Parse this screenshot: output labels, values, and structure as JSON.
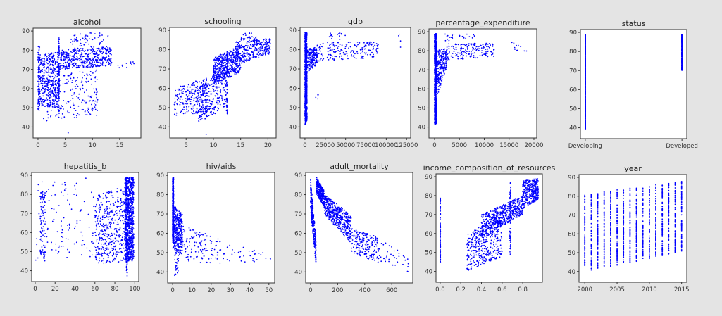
{
  "point_color": "#0000ff",
  "background": "#e4e4e4",
  "chart_data": [
    {
      "type": "scatter",
      "title": "alcohol",
      "xlim": [
        -0.9,
        18.9
      ],
      "ylim": [
        34.3,
        91.5
      ],
      "xticks": [
        0,
        5,
        10,
        15
      ],
      "yticks": [
        40,
        50,
        60,
        70,
        80,
        90
      ],
      "clusters": [
        {
          "x": [
            0,
            4
          ],
          "y0": [
            51,
            78
          ],
          "y1": [
            50,
            79
          ],
          "n": 420
        },
        {
          "x": [
            0,
            0.3
          ],
          "y0": [
            48,
            83
          ],
          "y1": [
            48,
            83
          ],
          "n": 60
        },
        {
          "x": [
            3.8,
            3.9
          ],
          "y0": [
            45,
            88
          ],
          "y1": [
            45,
            88
          ],
          "n": 90
        },
        {
          "x": [
            4,
            13.5
          ],
          "y0": [
            70,
            80
          ],
          "y1": [
            72,
            82
          ],
          "n": 420
        },
        {
          "x": [
            6,
            13
          ],
          "y0": [
            80,
            89
          ],
          "y1": [
            80,
            89
          ],
          "n": 70
        },
        {
          "x": [
            1,
            11
          ],
          "y0": [
            43,
            66
          ],
          "y1": [
            46,
            70
          ],
          "n": 200
        },
        {
          "x": [
            13,
            18
          ],
          "y0": [
            70,
            76
          ],
          "y1": [
            71,
            74
          ],
          "n": 15
        },
        {
          "x": [
            5.5,
            5.6
          ],
          "y0": [
            36,
            37
          ],
          "y1": [
            36,
            37
          ],
          "n": 1
        }
      ]
    },
    {
      "type": "scatter",
      "title": "schooling",
      "xlim": [
        2.0,
        21.5
      ],
      "ylim": [
        34.3,
        91.5
      ],
      "xticks": [
        5,
        10,
        15,
        20
      ],
      "yticks": [
        40,
        50,
        60,
        70,
        80,
        90
      ],
      "clusters": [
        {
          "x": [
            2.8,
            9
          ],
          "y0": [
            45,
            60
          ],
          "y1": [
            48,
            66
          ],
          "n": 220
        },
        {
          "x": [
            7,
            12.5
          ],
          "y0": [
            42,
            60
          ],
          "y1": [
            50,
            72
          ],
          "n": 280
        },
        {
          "x": [
            10,
            15
          ],
          "y0": [
            62,
            76
          ],
          "y1": [
            68,
            82
          ],
          "n": 500
        },
        {
          "x": [
            14,
            20.5
          ],
          "y0": [
            72,
            84
          ],
          "y1": [
            78,
            86
          ],
          "n": 300
        },
        {
          "x": [
            12.4,
            12.6
          ],
          "y0": [
            46,
            80
          ],
          "y1": [
            46,
            80
          ],
          "n": 70
        },
        {
          "x": [
            15,
            18
          ],
          "y0": [
            85,
            89
          ],
          "y1": [
            85,
            89
          ],
          "n": 25
        },
        {
          "x": [
            8.6,
            8.7
          ],
          "y0": [
            36,
            37
          ],
          "y1": [
            36,
            37
          ],
          "n": 1
        }
      ]
    },
    {
      "type": "scatter",
      "title": "gdp",
      "xlim": [
        -6000,
        130000
      ],
      "ylim": [
        34.3,
        91.5
      ],
      "xticks": [
        0,
        25000,
        50000,
        75000,
        100000,
        125000
      ],
      "xticklabels": [
        "0",
        "25000",
        "50000",
        "75000",
        "100000",
        "125000"
      ],
      "yticks": [
        40,
        50,
        60,
        70,
        80,
        90
      ],
      "clusters": [
        {
          "x": [
            0,
            2500
          ],
          "y0": [
            41,
            89
          ],
          "y1": [
            43,
            89
          ],
          "n": 900
        },
        {
          "x": [
            2500,
            15000
          ],
          "y0": [
            68,
            80
          ],
          "y1": [
            72,
            82
          ],
          "n": 200
        },
        {
          "x": [
            15000,
            90000
          ],
          "y0": [
            74,
            84
          ],
          "y1": [
            76,
            84
          ],
          "n": 180
        },
        {
          "x": [
            30000,
            50000
          ],
          "y0": [
            85,
            89
          ],
          "y1": [
            85,
            89
          ],
          "n": 15
        },
        {
          "x": [
            13000,
            20000
          ],
          "y0": [
            54,
            57
          ],
          "y1": [
            54,
            57
          ],
          "n": 5
        },
        {
          "x": [
            115000,
            120000
          ],
          "y0": [
            80,
            88
          ],
          "y1": [
            80,
            88
          ],
          "n": 4
        }
      ]
    },
    {
      "type": "scatter",
      "title": "percentage_expenditure",
      "xlim": [
        -1130,
        20570
      ],
      "ylim": [
        34.3,
        91.5
      ],
      "xticks": [
        0,
        5000,
        10000,
        15000,
        20000
      ],
      "yticks": [
        40,
        50,
        60,
        70,
        80,
        90
      ],
      "clusters": [
        {
          "x": [
            0,
            400
          ],
          "y0": [
            41,
            89
          ],
          "y1": [
            42,
            89
          ],
          "n": 900
        },
        {
          "x": [
            400,
            2500
          ],
          "y0": [
            55,
            80
          ],
          "y1": [
            72,
            82
          ],
          "n": 220
        },
        {
          "x": [
            2500,
            12000
          ],
          "y0": [
            75,
            84
          ],
          "y1": [
            77,
            84
          ],
          "n": 180
        },
        {
          "x": [
            2000,
            8500
          ],
          "y0": [
            85,
            89
          ],
          "y1": [
            85,
            89
          ],
          "n": 25
        },
        {
          "x": [
            15000,
            19500
          ],
          "y0": [
            79,
            85
          ],
          "y1": [
            80,
            84
          ],
          "n": 12
        }
      ]
    },
    {
      "type": "scatter",
      "title": "status",
      "categorical_x": true,
      "xlim": [
        -0.05,
        1.05
      ],
      "ylim": [
        34.3,
        91.5
      ],
      "xticks": [
        0,
        1
      ],
      "xticklabels": [
        "Developing",
        "Developed"
      ],
      "yticks": [
        40,
        50,
        60,
        70,
        80,
        90
      ],
      "clusters": [
        {
          "x": [
            0,
            0
          ],
          "y0": [
            39,
            89
          ],
          "y1": [
            39,
            89
          ],
          "n": 900
        },
        {
          "x": [
            1,
            1
          ],
          "y0": [
            70,
            89
          ],
          "y1": [
            70,
            89
          ],
          "n": 300
        }
      ]
    },
    {
      "type": "scatter",
      "title": "hepatitis_b",
      "xlim": [
        -3.5,
        104
      ],
      "ylim": [
        34.3,
        91.5
      ],
      "xticks": [
        0,
        20,
        40,
        60,
        80,
        100
      ],
      "yticks": [
        40,
        50,
        60,
        70,
        80,
        90
      ],
      "clusters": [
        {
          "x": [
            90,
            99
          ],
          "y0": [
            45,
            89
          ],
          "y1": [
            45,
            89
          ],
          "n": 900
        },
        {
          "x": [
            91.5,
            92.5
          ],
          "y0": [
            37,
            89
          ],
          "y1": [
            37,
            89
          ],
          "n": 120
        },
        {
          "x": [
            60,
            90
          ],
          "y0": [
            44,
            80
          ],
          "y1": [
            44,
            84
          ],
          "n": 400
        },
        {
          "x": [
            5,
            10
          ],
          "y0": [
            45,
            82
          ],
          "y1": [
            45,
            82
          ],
          "n": 90
        },
        {
          "x": [
            0,
            60
          ],
          "y0": [
            45,
            88
          ],
          "y1": [
            47,
            89
          ],
          "n": 120
        }
      ]
    },
    {
      "type": "scatter",
      "title": "hiv/aids",
      "xlim": [
        -2.6,
        53
      ],
      "ylim": [
        34.3,
        91.5
      ],
      "xticks": [
        0,
        10,
        20,
        30,
        40,
        50
      ],
      "yticks": [
        40,
        50,
        60,
        70,
        80,
        90
      ],
      "clusters": [
        {
          "x": [
            0,
            0.5
          ],
          "y0": [
            55,
            89
          ],
          "y1": [
            55,
            89
          ],
          "n": 600
        },
        {
          "x": [
            0,
            5
          ],
          "y0": [
            52,
            75
          ],
          "y1": [
            48,
            70
          ],
          "n": 400
        },
        {
          "x": [
            1,
            3
          ],
          "y0": [
            38,
            52
          ],
          "y1": [
            40,
            52
          ],
          "n": 30
        },
        {
          "x": [
            5,
            25
          ],
          "y0": [
            46,
            64
          ],
          "y1": [
            43,
            57
          ],
          "n": 120
        },
        {
          "x": [
            25,
            51
          ],
          "y0": [
            45,
            56
          ],
          "y1": [
            44,
            49
          ],
          "n": 35
        }
      ]
    },
    {
      "type": "scatter",
      "title": "adult_mortality",
      "xlim": [
        -36,
        755
      ],
      "ylim": [
        34.3,
        91.5
      ],
      "xticks": [
        0,
        200,
        400,
        600
      ],
      "yticks": [
        40,
        50,
        60,
        70,
        80,
        90
      ],
      "clusters": [
        {
          "x": [
            0,
            40
          ],
          "y0": [
            72,
            88
          ],
          "y1": [
            44,
            58
          ],
          "n": 250
        },
        {
          "x": [
            45,
            100
          ],
          "y0": [
            80,
            89
          ],
          "y1": [
            74,
            82
          ],
          "n": 300
        },
        {
          "x": [
            100,
            300
          ],
          "y0": [
            70,
            80
          ],
          "y1": [
            55,
            70
          ],
          "n": 500
        },
        {
          "x": [
            300,
            500
          ],
          "y0": [
            50,
            63
          ],
          "y1": [
            45,
            58
          ],
          "n": 180
        },
        {
          "x": [
            500,
            730
          ],
          "y0": [
            44,
            58
          ],
          "y1": [
            40,
            48
          ],
          "n": 40
        }
      ]
    },
    {
      "type": "scatter",
      "title": "income_composition_of_resources",
      "xlim": [
        -0.04,
        0.99
      ],
      "ylim": [
        34.3,
        91.5
      ],
      "xticks": [
        0.0,
        0.2,
        0.4,
        0.6,
        0.8
      ],
      "xticklabels": [
        "0.0",
        "0.2",
        "0.4",
        "0.6",
        "0.8"
      ],
      "yticks": [
        40,
        50,
        60,
        70,
        80,
        90
      ],
      "clusters": [
        {
          "x": [
            0,
            0.003
          ],
          "y0": [
            45,
            79
          ],
          "y1": [
            45,
            79
          ],
          "n": 80
        },
        {
          "x": [
            0.26,
            0.6
          ],
          "y0": [
            40,
            60
          ],
          "y1": [
            48,
            70
          ],
          "n": 350
        },
        {
          "x": [
            0.4,
            0.8
          ],
          "y0": [
            58,
            70
          ],
          "y1": [
            70,
            80
          ],
          "n": 550
        },
        {
          "x": [
            0.8,
            0.95
          ],
          "y0": [
            73,
            88
          ],
          "y1": [
            78,
            89
          ],
          "n": 350
        },
        {
          "x": [
            0.675,
            0.685
          ],
          "y0": [
            48,
            87
          ],
          "y1": [
            48,
            87
          ],
          "n": 70
        }
      ]
    },
    {
      "type": "scatter",
      "title": "year",
      "xlim": [
        1999.1,
        2015.8
      ],
      "ylim": [
        34.3,
        91.5
      ],
      "discrete_x": [
        2000,
        2001,
        2002,
        2003,
        2004,
        2005,
        2006,
        2007,
        2008,
        2009,
        2010,
        2011,
        2012,
        2013,
        2014,
        2015
      ],
      "xticks": [
        2000,
        2005,
        2010,
        2015
      ],
      "yticks": [
        40,
        50,
        60,
        70,
        80,
        90
      ],
      "clusters": [
        {
          "x": [
            2000,
            2015
          ],
          "y0": [
            40,
            81
          ],
          "y1": [
            50,
            88
          ],
          "n": 1400
        }
      ]
    }
  ]
}
